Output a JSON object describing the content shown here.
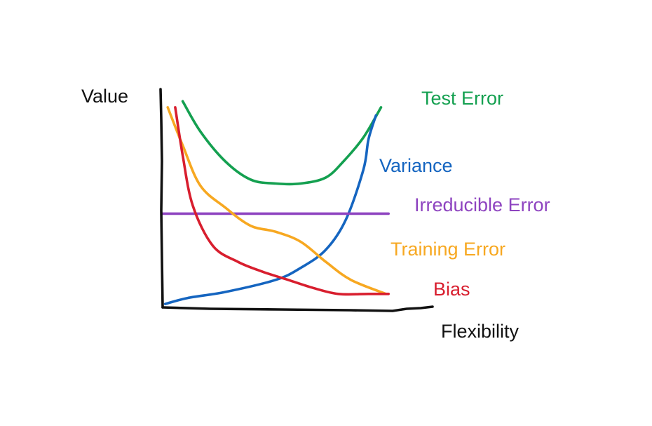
{
  "chart_data": {
    "type": "line",
    "title": "",
    "xlabel": "Flexibility",
    "ylabel": "Value",
    "x_ticks": [],
    "y_ticks": [],
    "grid": false,
    "legend": "none (curves labelled directly)",
    "xlim": [
      0,
      10
    ],
    "ylim": [
      0,
      10
    ],
    "series": [
      {
        "name": "Test Error",
        "color": "#14A050",
        "x": [
          0.8,
          1.5,
          2.5,
          3.5,
          4.5,
          5.5,
          6.5,
          7.2,
          8.0,
          8.7
        ],
        "y": [
          10.2,
          8.7,
          7.2,
          6.3,
          6.1,
          6.1,
          6.4,
          7.2,
          8.4,
          9.9
        ]
      },
      {
        "name": "Variance",
        "color": "#1565C0",
        "x": [
          0.1,
          1.0,
          2.5,
          4.5,
          5.5,
          6.5,
          7.3,
          8.0,
          8.2,
          8.5
        ],
        "y": [
          0.1,
          0.4,
          0.7,
          1.3,
          1.9,
          2.8,
          4.3,
          6.8,
          8.3,
          9.5
        ]
      },
      {
        "name": "Irreducible Error",
        "color": "#8E44C0",
        "x": [
          0.0,
          9.0
        ],
        "y": [
          4.6,
          4.6
        ]
      },
      {
        "name": "Training Error",
        "color": "#F7A821",
        "x": [
          0.2,
          0.8,
          1.5,
          2.5,
          3.5,
          4.5,
          5.5,
          6.5,
          7.5,
          8.9
        ],
        "y": [
          9.9,
          8.0,
          6.0,
          4.9,
          4.0,
          3.7,
          3.2,
          2.2,
          1.3,
          0.6
        ]
      },
      {
        "name": "Bias",
        "color": "#D81E2E",
        "x": [
          0.5,
          0.8,
          1.2,
          2.0,
          3.0,
          4.0,
          5.0,
          6.0,
          7.0,
          8.2,
          9.0
        ],
        "y": [
          9.9,
          7.5,
          5.0,
          3.0,
          2.2,
          1.7,
          1.3,
          0.9,
          0.6,
          0.6,
          0.6
        ]
      }
    ]
  }
}
